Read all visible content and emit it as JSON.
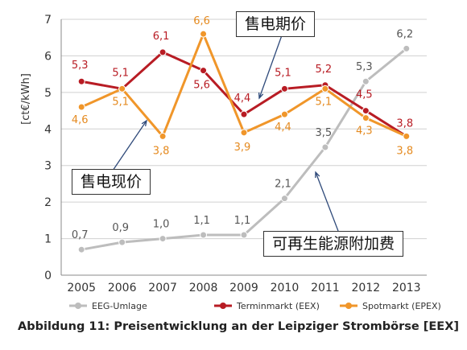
{
  "chart_data": {
    "type": "line",
    "title": "",
    "xlabel": "",
    "ylabel": "[ct€/kWh]",
    "ylim": [
      0,
      7
    ],
    "yticks": [
      0,
      1,
      2,
      3,
      4,
      5,
      6,
      7
    ],
    "grid": true,
    "legend_position": "bottom",
    "categories": [
      "2005",
      "2006",
      "2007",
      "2008",
      "2009",
      "2010",
      "2011",
      "2012",
      "2013"
    ],
    "series": [
      {
        "name": "EEG-Umlage",
        "color": "#bdbdbd",
        "values": [
          0.7,
          0.9,
          1.0,
          1.1,
          1.1,
          2.1,
          3.5,
          5.3,
          6.2
        ],
        "labels": [
          "0,7",
          "0,9",
          "1,0",
          "1,1",
          "1,1",
          "2,1",
          "3,5",
          "5,3",
          "6,2"
        ],
        "label_color": "#555555"
      },
      {
        "name": "Terminmarkt (EEX)",
        "color": "#b81c24",
        "values": [
          5.3,
          5.1,
          6.1,
          5.6,
          4.4,
          5.1,
          5.2,
          4.5,
          3.8
        ],
        "labels": [
          "5,3",
          "5,1",
          "6,1",
          "5,6",
          "4,4",
          "5,1",
          "5,2",
          "4,5",
          "3,8"
        ],
        "label_color": "#b81c24"
      },
      {
        "name": "Spotmarkt (EPEX)",
        "color": "#f0962a",
        "values": [
          4.6,
          5.1,
          3.8,
          6.6,
          3.9,
          4.4,
          5.1,
          4.3,
          3.8
        ],
        "labels": [
          "4,6",
          "5,1",
          "3,8",
          "6,6",
          "3,9",
          "4,4",
          "5,1",
          "4,3",
          "3,8"
        ],
        "label_color": "#e58a1f"
      }
    ],
    "annotations": [
      "售电期价",
      "售电现价",
      "可再生能源附加费"
    ]
  },
  "callouts": {
    "price": "售电期价",
    "spot": "售电现价",
    "eeg": "可再生能源附加费"
  },
  "caption": "Abbildung 11: Preisentwicklung an der Leipziger Strombörse [EEX]"
}
